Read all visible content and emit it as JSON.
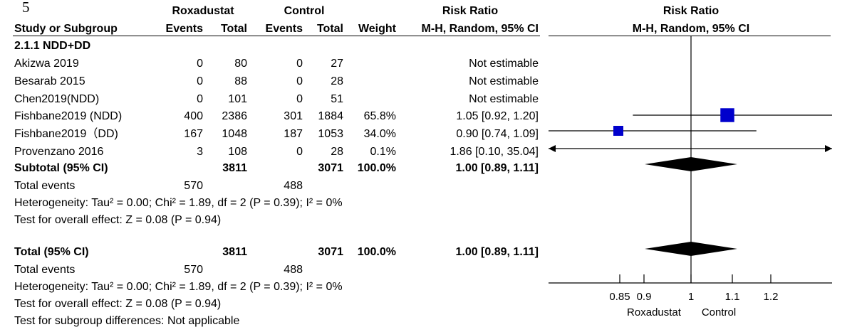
{
  "panel_label": "5",
  "header": {
    "group1": "Roxadustat",
    "group2": "Control",
    "ratio_title_left": "Risk Ratio",
    "ratio_title_right": "Risk Ratio",
    "study_col": "Study or Subgroup",
    "events1": "Events",
    "total1": "Total",
    "events2": "Events",
    "total2": "Total",
    "weight": "Weight",
    "ci_left": "M-H, Random, 95% CI",
    "ci_right": "M-H, Random, 95% CI"
  },
  "subgroup_title": "2.1.1 NDD+DD",
  "studies": [
    {
      "name": "Akizwa 2019",
      "e1": "0",
      "t1": "80",
      "e2": "0",
      "t2": "27",
      "weight": "",
      "ci": "Not estimable"
    },
    {
      "name": "Besarab 2015",
      "e1": "0",
      "t1": "88",
      "e2": "0",
      "t2": "28",
      "weight": "",
      "ci": "Not estimable"
    },
    {
      "name": "Chen2019(NDD)",
      "e1": "0",
      "t1": "101",
      "e2": "0",
      "t2": "51",
      "weight": "",
      "ci": "Not estimable"
    },
    {
      "name": "Fishbane2019 (NDD)",
      "e1": "400",
      "t1": "2386",
      "e2": "301",
      "t2": "1884",
      "weight": "65.8%",
      "ci": "1.05 [0.92, 1.20]"
    },
    {
      "name": "Fishbane2019（DD)",
      "e1": "167",
      "t1": "1048",
      "e2": "187",
      "t2": "1053",
      "weight": "34.0%",
      "ci": "0.90 [0.74, 1.09]"
    },
    {
      "name": "Provenzano 2016",
      "e1": "3",
      "t1": "108",
      "e2": "0",
      "t2": "28",
      "weight": "0.1%",
      "ci": "1.86 [0.10, 35.04]"
    }
  ],
  "subtotal": {
    "label": "Subtotal (95% CI)",
    "t1": "3811",
    "t2": "3071",
    "weight": "100.0%",
    "ci": "1.00 [0.89, 1.11]"
  },
  "subtotal_events": {
    "label": "Total events",
    "e1": "570",
    "e2": "488"
  },
  "subtotal_heterogeneity": "Heterogeneity: Tau² = 0.00; Chi² = 1.89, df = 2 (P = 0.39); I² = 0%",
  "subtotal_effect": "Test for overall effect: Z = 0.08 (P = 0.94)",
  "total": {
    "label": "Total (95% CI)",
    "t1": "3811",
    "t2": "3071",
    "weight": "100.0%",
    "ci": "1.00 [0.89, 1.11]"
  },
  "total_events": {
    "label": "Total events",
    "e1": "570",
    "e2": "488"
  },
  "total_heterogeneity": "Heterogeneity: Tau² = 0.00; Chi² = 1.89, df = 2 (P = 0.39); I² = 0%",
  "total_effect": "Test for overall effect: Z = 0.08 (P = 0.94)",
  "subgroup_diff": "Test for subgroup differences: Not applicable",
  "chart_data": {
    "type": "forest",
    "axis": {
      "ticks": [
        0.85,
        0.9,
        1,
        1.1,
        1.2
      ],
      "tick_labels": [
        "0.85",
        "0.9",
        "1",
        "1.1",
        "1.2"
      ],
      "null_value": 1,
      "favours_left": "Roxadustat",
      "favours_right": "Control"
    },
    "estimates": [
      {
        "study": "Fishbane2019 (NDD)",
        "rr": 1.05,
        "lo": 0.92,
        "hi": 1.2,
        "weight": 65.8,
        "arrow_left": false,
        "arrow_right": false
      },
      {
        "study": "Fishbane2019（DD)",
        "rr": 0.9,
        "lo": 0.74,
        "hi": 1.09,
        "weight": 34.0,
        "arrow_left": false,
        "arrow_right": false
      },
      {
        "study": "Provenzano 2016",
        "rr": 1.86,
        "lo": 0.1,
        "hi": 35.04,
        "weight": 0.1,
        "arrow_left": true,
        "arrow_right": true
      }
    ],
    "pooled": [
      {
        "label": "Subtotal (95% CI)",
        "rr": 1.0,
        "lo": 0.89,
        "hi": 1.11
      },
      {
        "label": "Total (95% CI)",
        "rr": 1.0,
        "lo": 0.89,
        "hi": 1.11
      }
    ],
    "colors": {
      "square": "#0000cc",
      "diamond": "#000000",
      "line": "#000000"
    }
  }
}
